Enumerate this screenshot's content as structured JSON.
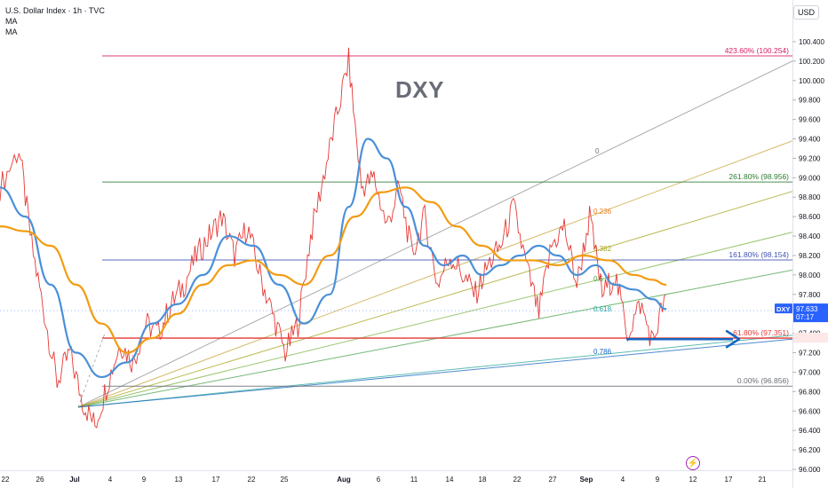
{
  "header": {
    "symbol_title": "U.S. Dollar Index · 1h · TVC",
    "indicators": [
      "MA",
      "MA"
    ],
    "currency": "USD"
  },
  "watermark": "DXY",
  "colors": {
    "price": "#e53935",
    "ma_short": "#4a90d9",
    "ma_long": "#f39c12",
    "fib_top": "#d81b60",
    "fib_261": "#2e7d32",
    "fib_161": "#3f51b5",
    "fib_61": "#e53935",
    "fib_0": "#6a6d78",
    "arrow": "#1565c0",
    "price_tag": "#2962ff"
  },
  "icons": {
    "flash": "flash-icon"
  },
  "chart_data": {
    "type": "line",
    "title": "U.S. Dollar Index · 1h · TVC",
    "ylim": [
      96.0,
      100.5
    ],
    "x_ticks": [
      "22",
      "26",
      "Jul",
      "4",
      "9",
      "13",
      "17",
      "22",
      "25",
      "Aug",
      "6",
      "11",
      "14",
      "18",
      "22",
      "27",
      "Sep",
      "4",
      "9",
      "12",
      "17",
      "21"
    ],
    "y_ticks": [
      "100.400",
      "100.200",
      "100.000",
      "99.800",
      "99.600",
      "99.400",
      "99.200",
      "99.000",
      "98.800",
      "98.600",
      "98.400",
      "98.200",
      "98.000",
      "97.800",
      "97.600",
      "97.400",
      "97.200",
      "97.000",
      "96.800",
      "96.600",
      "96.400",
      "96.200",
      "96.000"
    ],
    "last_price": {
      "symbol": "DXY",
      "value": "97.633",
      "countdown": "07:17"
    },
    "fib_extension_levels": [
      {
        "label": "423.60% (100.254)",
        "value": 100.254
      },
      {
        "label": "261.80% (98.956)",
        "value": 98.956
      },
      {
        "label": "161.80% (98.154)",
        "value": 98.154
      },
      {
        "label": "61.80% (97.351)",
        "value": 97.351
      },
      {
        "label": "0.00% (96.856)",
        "value": 96.856
      }
    ],
    "fib_fan_labels": [
      "0",
      "0.236",
      "0.382",
      "0.5",
      "0.618",
      "0.786"
    ],
    "series": [
      {
        "name": "",
        "color": "#e53935",
        "x": [
          0,
          3,
          5,
          7,
          9,
          11,
          13,
          15,
          17,
          19,
          21,
          23,
          25,
          27,
          29,
          31,
          33,
          35,
          37,
          39,
          41,
          43,
          45,
          47,
          49,
          51,
          53,
          55,
          57,
          59,
          61,
          63,
          65,
          67,
          69,
          71,
          73,
          75,
          77,
          79,
          81,
          83,
          85,
          87,
          89,
          91,
          93,
          95,
          97,
          99,
          101,
          103,
          105
        ],
        "y": [
          98.9,
          99.3,
          98.3,
          97.6,
          96.9,
          97.2,
          96.7,
          96.45,
          96.9,
          97.3,
          97.1,
          97.5,
          97.4,
          97.7,
          97.9,
          98.2,
          98.4,
          98.6,
          98.2,
          98.5,
          98.0,
          97.6,
          97.2,
          97.5,
          98.4,
          99.0,
          99.6,
          100.2,
          98.9,
          99.0,
          98.5,
          98.9,
          98.2,
          98.6,
          97.9,
          98.2,
          98.0,
          97.8,
          98.1,
          98.3,
          98.7,
          98.1,
          97.6,
          98.3,
          98.5,
          97.9,
          98.6,
          97.8,
          98.0,
          97.4,
          97.7,
          97.3,
          97.8
        ]
      },
      {
        "name": "MA",
        "color": "#4a90d9",
        "x": [
          0,
          4,
          8,
          12,
          16,
          20,
          24,
          28,
          32,
          36,
          40,
          44,
          48,
          52,
          55,
          58,
          61,
          64,
          67,
          70,
          73,
          76,
          79,
          82,
          85,
          88,
          91,
          94,
          97,
          100,
          103,
          105
        ],
        "y": [
          98.9,
          98.6,
          97.9,
          97.2,
          96.95,
          97.1,
          97.5,
          97.7,
          98.0,
          98.4,
          98.3,
          97.9,
          97.5,
          97.8,
          98.7,
          99.4,
          99.2,
          98.7,
          98.3,
          98.1,
          98.2,
          98.0,
          98.1,
          98.2,
          98.3,
          98.2,
          98.0,
          98.1,
          97.9,
          97.85,
          97.75,
          97.65
        ]
      },
      {
        "name": "MA",
        "color": "#f39c12",
        "x": [
          0,
          4,
          8,
          12,
          16,
          20,
          24,
          28,
          32,
          36,
          40,
          44,
          48,
          52,
          56,
          60,
          64,
          68,
          72,
          76,
          80,
          84,
          88,
          92,
          96,
          100,
          103,
          105
        ],
        "y": [
          98.5,
          98.45,
          98.3,
          97.9,
          97.5,
          97.2,
          97.35,
          97.6,
          97.9,
          98.1,
          98.15,
          98.0,
          97.9,
          98.2,
          98.6,
          98.85,
          98.9,
          98.75,
          98.5,
          98.3,
          98.15,
          98.15,
          98.1,
          98.2,
          98.15,
          98.0,
          97.95,
          97.9
        ]
      }
    ],
    "x_range": [
      0,
      125
    ],
    "grid": false,
    "legend": "top-left"
  }
}
